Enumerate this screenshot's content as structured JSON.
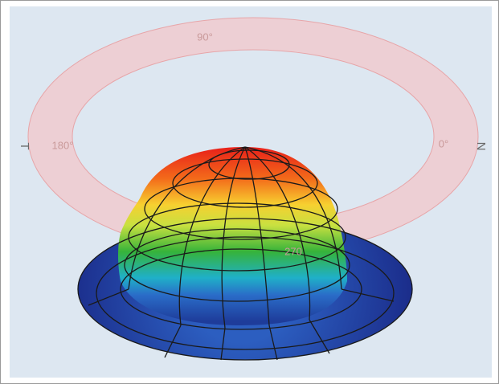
{
  "ring_labels": [
    "90°",
    "180°",
    "0°",
    "270"
  ],
  "side_labels": [
    "T",
    "N"
  ]
}
